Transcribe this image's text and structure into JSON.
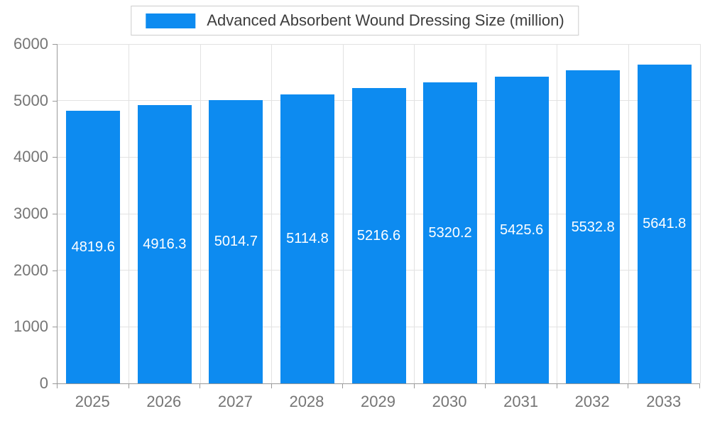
{
  "chart_data": {
    "type": "bar",
    "title": "Advanced Absorbent Wound Dressing Size (million)",
    "categories": [
      "2025",
      "2026",
      "2027",
      "2028",
      "2029",
      "2030",
      "2031",
      "2032",
      "2033"
    ],
    "values": [
      4819.6,
      4916.3,
      5014.7,
      5114.8,
      5216.6,
      5320.2,
      5425.6,
      5532.8,
      5641.8
    ],
    "value_labels": [
      "4819.6",
      "4916.3",
      "5014.7",
      "5114.8",
      "5216.6",
      "5320.2",
      "5425.6",
      "5532.8",
      "5641.8"
    ],
    "xlabel": "",
    "ylabel": "",
    "ylim": [
      0,
      6000
    ],
    "yticks": [
      0,
      1000,
      2000,
      3000,
      4000,
      5000,
      6000
    ],
    "grid": true,
    "legend_position": "top-center",
    "bar_color": "#0d8bf0",
    "value_label_color": "#ffffff",
    "axis_text_color": "#757575",
    "grid_color": "#e2e2e2",
    "axis_line_color": "#999999"
  }
}
